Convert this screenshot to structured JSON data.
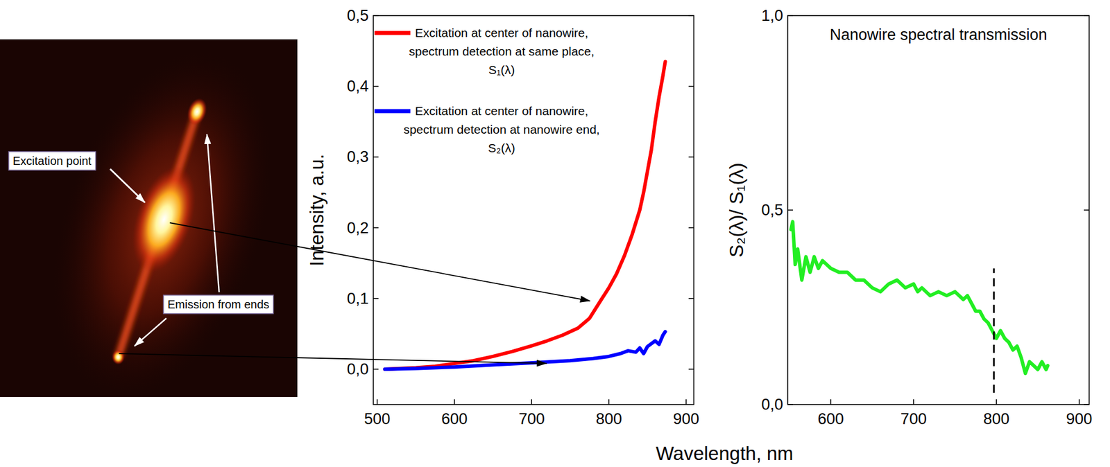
{
  "image": {
    "labels": [
      "Excitation point",
      "Emission from ends"
    ]
  },
  "shared_xlabel": "Wavelength, nm",
  "chart_data": [
    {
      "type": "line",
      "ylabel": "Intensity, a.u.",
      "xlim": [
        495,
        910
      ],
      "ylim": [
        -0.05,
        0.5
      ],
      "xticks": [
        500,
        600,
        700,
        800,
        900
      ],
      "yticks": [
        {
          "value": 0,
          "label": "0,0"
        },
        {
          "value": 0.1,
          "label": "0,1"
        },
        {
          "value": 0.2,
          "label": "0,2"
        },
        {
          "value": 0.3,
          "label": "0,3"
        },
        {
          "value": 0.4,
          "label": "0,4"
        },
        {
          "value": 0.5,
          "label": "0,5"
        }
      ],
      "grid": false,
      "legend": "upper left",
      "series": [
        {
          "name": "Excitation at center of nanowire,\nspectrum detection at same place,\nS₁(λ)",
          "color": "#ff0000",
          "line_style": "solid",
          "x": [
            510,
            530,
            550,
            575,
            600,
            625,
            650,
            675,
            700,
            720,
            740,
            760,
            775,
            790,
            800,
            810,
            820,
            830,
            840,
            845,
            850,
            855,
            860,
            865,
            870,
            873
          ],
          "values": [
            0.0,
            0.001,
            0.002,
            0.004,
            0.008,
            0.012,
            0.018,
            0.025,
            0.033,
            0.04,
            0.048,
            0.058,
            0.072,
            0.098,
            0.115,
            0.135,
            0.16,
            0.19,
            0.225,
            0.25,
            0.28,
            0.31,
            0.35,
            0.385,
            0.415,
            0.435
          ]
        },
        {
          "name": "Excitation at center of nanowire,\nspectrum detection at nanowire end,\nS₂(λ)",
          "color": "#0000ff",
          "line_style": "solid",
          "x": [
            510,
            550,
            600,
            650,
            700,
            750,
            780,
            800,
            815,
            825,
            835,
            840,
            845,
            850,
            855,
            860,
            865,
            870,
            873
          ],
          "values": [
            0.0,
            0.001,
            0.003,
            0.006,
            0.009,
            0.012,
            0.015,
            0.018,
            0.022,
            0.026,
            0.024,
            0.03,
            0.022,
            0.032,
            0.036,
            0.04,
            0.035,
            0.048,
            0.053
          ]
        }
      ]
    },
    {
      "type": "line",
      "title": "Nanowire spectral transmission",
      "ylabel": "S₂(λ)/ S₁(λ)",
      "xlim": [
        548,
        912
      ],
      "ylim": [
        0,
        1
      ],
      "xticks": [
        600,
        700,
        800,
        900
      ],
      "yticks": [
        {
          "value": 0,
          "label": "0,0"
        },
        {
          "value": 0.5,
          "label": "0,5"
        },
        {
          "value": 1,
          "label": "1,0"
        }
      ],
      "grid": false,
      "series": [
        {
          "color": "#22ee22",
          "line_style": "solid",
          "x": [
            552,
            554,
            557,
            560,
            565,
            570,
            575,
            580,
            585,
            590,
            600,
            610,
            620,
            630,
            640,
            650,
            660,
            670,
            680,
            690,
            700,
            705,
            710,
            720,
            730,
            740,
            750,
            760,
            765,
            770,
            775,
            780,
            785,
            790,
            795,
            800,
            805,
            810,
            815,
            820,
            825,
            830,
            835,
            840,
            845,
            850,
            855,
            860,
            862
          ],
          "values": [
            0.45,
            0.47,
            0.36,
            0.4,
            0.32,
            0.38,
            0.34,
            0.38,
            0.35,
            0.37,
            0.35,
            0.34,
            0.34,
            0.32,
            0.32,
            0.3,
            0.29,
            0.31,
            0.32,
            0.3,
            0.31,
            0.29,
            0.3,
            0.28,
            0.29,
            0.28,
            0.29,
            0.27,
            0.28,
            0.26,
            0.24,
            0.24,
            0.22,
            0.21,
            0.19,
            0.17,
            0.19,
            0.17,
            0.16,
            0.14,
            0.15,
            0.12,
            0.08,
            0.11,
            0.1,
            0.09,
            0.11,
            0.09,
            0.1
          ]
        },
        {
          "color": "#000000",
          "line_style": "dashed",
          "x": [
            797,
            797
          ],
          "values": [
            0.03,
            0.35
          ]
        }
      ]
    }
  ]
}
